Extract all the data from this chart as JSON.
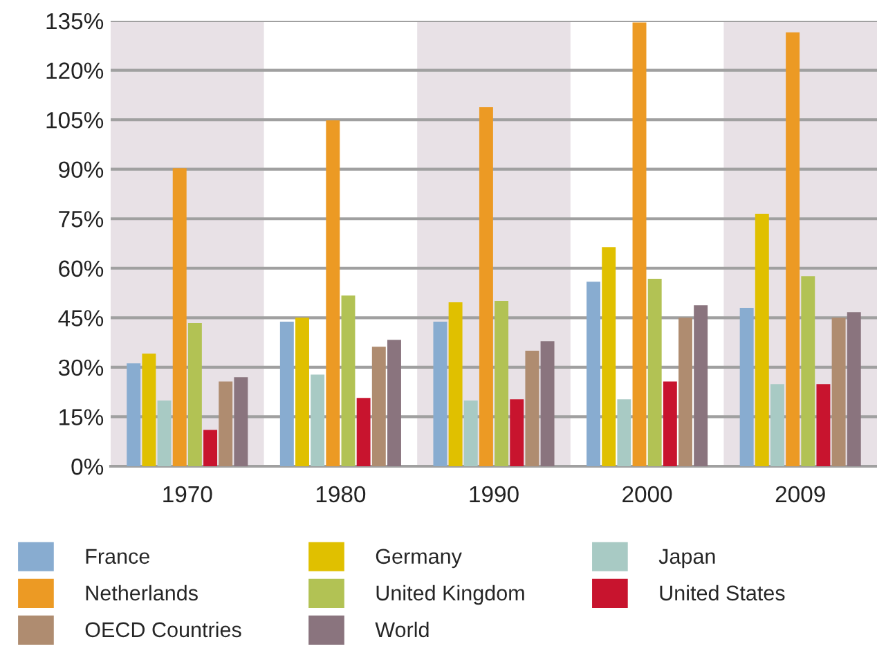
{
  "chart_data": {
    "type": "bar",
    "categories": [
      "1970",
      "1980",
      "1990",
      "2000",
      "2009"
    ],
    "series": [
      {
        "name": "France",
        "color": "#88acd0",
        "values": [
          31.2,
          43.8,
          43.8,
          55.9,
          48
        ]
      },
      {
        "name": "Germany",
        "color": "#e0c000",
        "values": [
          34.1,
          45,
          49.7,
          66.4,
          76.5
        ]
      },
      {
        "name": "Japan",
        "color": "#a8cac4",
        "values": [
          19.9,
          27.8,
          19.9,
          20.3,
          24.9
        ]
      },
      {
        "name": "Netherlands",
        "color": "#ec9a24",
        "values": [
          90.3,
          104.8,
          108.8,
          134.5,
          131.5
        ]
      },
      {
        "name": "United Kingdom",
        "color": "#b2c254",
        "values": [
          43.4,
          51.7,
          50.1,
          56.8,
          57.6
        ]
      },
      {
        "name": "United States",
        "color": "#c8142e",
        "values": [
          11,
          20.7,
          20.3,
          25.7,
          24.9
        ]
      },
      {
        "name": "OECD Countries",
        "color": "#af8c70",
        "values": [
          25.7,
          36.2,
          35,
          45,
          45
        ]
      },
      {
        "name": "World",
        "color": "#8a747e",
        "values": [
          27,
          38.3,
          37.9,
          48.8,
          46.7
        ]
      }
    ],
    "ylim": [
      0,
      135
    ],
    "yticks": [
      {
        "value": 0,
        "label": "0%"
      },
      {
        "value": 15,
        "label": "15%"
      },
      {
        "value": 30,
        "label": "30%"
      },
      {
        "value": 45,
        "label": "45%"
      },
      {
        "value": 60,
        "label": "60%"
      },
      {
        "value": 75,
        "label": "75%"
      },
      {
        "value": 90,
        "label": "90%"
      },
      {
        "value": 105,
        "label": "105%"
      },
      {
        "value": 120,
        "label": "120%"
      },
      {
        "value": 135,
        "label": "135%"
      }
    ],
    "grid": "y",
    "legend": "bottom",
    "bands": [
      {
        "axis": "x",
        "from": "1970",
        "to": "1970",
        "color": "#e8e1e6"
      },
      {
        "axis": "x",
        "from": "1990",
        "to": "1990",
        "color": "#e8e1e6"
      },
      {
        "axis": "x",
        "from": "2009",
        "to": "2009",
        "color": "#e8e1e6"
      }
    ]
  }
}
